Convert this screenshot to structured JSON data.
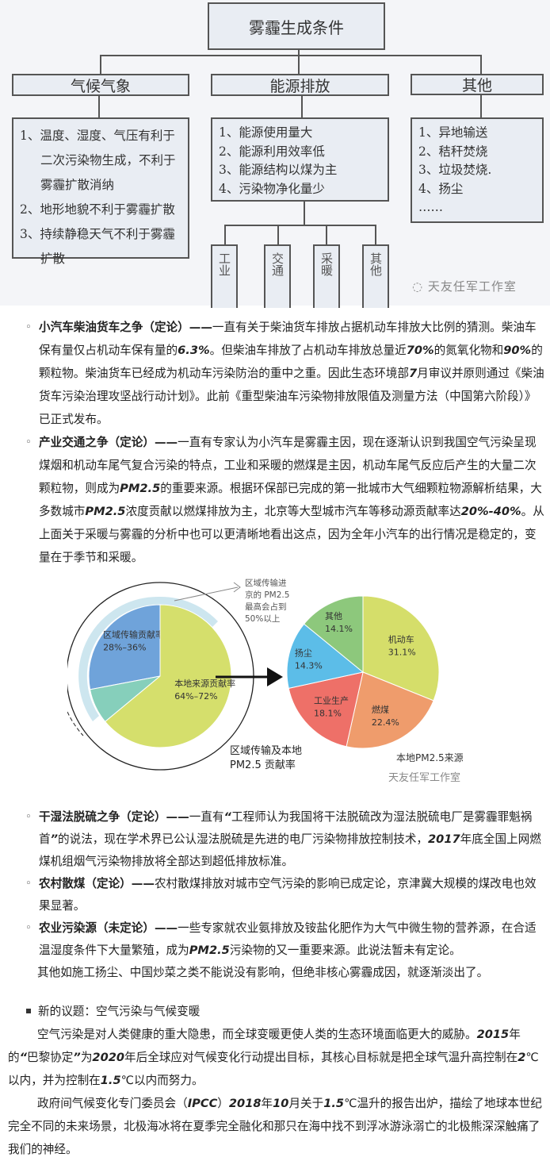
{
  "diagram": {
    "title": "雾霾生成条件",
    "categories": [
      {
        "label": "气候气象",
        "items": [
          "1、温度、湿度、气压有利于二次污染物生成，不利于雾霾扩散消纳",
          "2、地形地貌不利于雾霾扩散",
          "3、持续静稳天气不利于雾霾扩散"
        ]
      },
      {
        "label": "能源排放",
        "items": [
          "1、能源使用量大",
          "2、能源利用效率低",
          "3、能源结构以煤为主",
          "4、污染物净化量少"
        ]
      },
      {
        "label": "其他",
        "items": [
          "1、异地输送",
          "2、秸秆焚烧",
          "3、垃圾焚烧.",
          "4、扬尘",
          "……"
        ]
      }
    ],
    "sub_sectors": [
      "工业",
      "交通",
      "采暖",
      "其他"
    ],
    "watermark": "天友任军工作室"
  },
  "debates1": [
    {
      "segs": [
        {
          "t": "小汽车柴油货车之争（定论）",
          "s": 1
        },
        {
          "t": "——",
          "s": 1
        },
        {
          "t": "一直有关于柴油货车排放占据机动车排放大比例的猜测。柴油车保有量仅占机动车保有量的"
        },
        {
          "t": "6.3%",
          "n": 1
        },
        {
          "t": "。但柴油车排放了占机动车排放总量近"
        },
        {
          "t": "70%",
          "n": 1
        },
        {
          "t": "的氮氧化物和"
        },
        {
          "t": "90%",
          "n": 1
        },
        {
          "t": "的颗粒物。柴油货车已经成为机动车污染防治的重中之重。因此生态环境部"
        },
        {
          "t": "7",
          "n": 1
        },
        {
          "t": "月审议并原则通过《柴油货车污染治理攻坚战行动计划》。此前《重型柴油车污染物排放限值及测量方法（中国第六阶段）》已正式发布。"
        }
      ]
    },
    {
      "segs": [
        {
          "t": "产业交通之争（定论）",
          "s": 1
        },
        {
          "t": "——",
          "s": 1
        },
        {
          "t": "一直有专家认为小汽车是雾霾主因，现在逐渐认识到我国空气污染呈现煤烟和机动车尾气复合污染的特点，工业和采暖的燃煤是主因，机动车尾气反应后产生的大量二次颗粒物，则成为"
        },
        {
          "t": "PM2.5",
          "n": 1
        },
        {
          "t": "的重要来源。根据环保部已完成的第一批城市大气细颗粒物源解析结果，大多数城市"
        },
        {
          "t": "PM2.5",
          "n": 1
        },
        {
          "t": "浓度贡献以燃煤排放为主，北京等大型城市汽车等移动源贡献率达"
        },
        {
          "t": "20%-40%",
          "n": 1
        },
        {
          "t": "。从上面关于采暖与雾霾的分析中也可以更清晰地看出这点，因为全年小汽车的出行情况是稳定的，变量在于季节和采暖。"
        }
      ]
    }
  ],
  "figure2": {
    "left_annotation": [
      "区域传输进",
      "京的 PM2.5",
      "最高会占到",
      "50%以上"
    ],
    "left_caption": [
      "区域传输及本地",
      "PM2.5 贡献率"
    ],
    "right_caption": "本地PM2.5来源",
    "watermark": "天友任军工作室"
  },
  "chart_data": [
    {
      "type": "pie",
      "title": "区域传输及本地 PM2.5 贡献率",
      "slices": [
        {
          "label": "区域传输贡献率",
          "value_text": "28%–36%",
          "value": 28,
          "color": "#6fa3da"
        },
        {
          "label": "",
          "value_text": "",
          "value": 8,
          "color": "#86cfbb"
        },
        {
          "label": "本地来源贡献率",
          "value_text": "64%–72%",
          "value": 64,
          "color": "#d5df6c"
        }
      ],
      "annotation": "区域传输进京的 PM2.5 最高会占到50%以上"
    },
    {
      "type": "pie",
      "title": "本地PM2.5来源",
      "slices": [
        {
          "label": "机动车",
          "value": 31.1,
          "value_text": "31.1%",
          "color": "#d5de6a"
        },
        {
          "label": "燃煤",
          "value": 22.4,
          "value_text": "22.4%",
          "color": "#ef9c6c"
        },
        {
          "label": "工业生产",
          "value": 18.1,
          "value_text": "18.1%",
          "color": "#ee7068"
        },
        {
          "label": "扬尘",
          "value": 14.3,
          "value_text": "14.3%",
          "color": "#5cbde8"
        },
        {
          "label": "其他",
          "value": 14.1,
          "value_text": "14.1%",
          "color": "#8dc87c"
        }
      ]
    }
  ],
  "debates2": [
    {
      "segs": [
        {
          "t": "干湿法脱硫之争（定论）",
          "s": 1
        },
        {
          "t": "——",
          "s": 1
        },
        {
          "t": "一直有"
        },
        {
          "t": "“",
          "n": 1
        },
        {
          "t": "工程师认为我国将干法脱硫改为湿法脱硫电厂是雾霾罪魁祸首"
        },
        {
          "t": "”",
          "n": 1
        },
        {
          "t": "的说法，现在学术界已公认湿法脱硫是先进的电厂污染物排放控制技术，"
        },
        {
          "t": "2017",
          "n": 1
        },
        {
          "t": "年底全国上网燃煤机组烟气污染物排放将全部达到超低排放标准。"
        }
      ]
    },
    {
      "segs": [
        {
          "t": "农村散煤（定论）",
          "s": 1
        },
        {
          "t": "——",
          "s": 1
        },
        {
          "t": "农村散煤排放对城市空气污染的影响已成定论，京津冀大规模的煤改电也效果显著。"
        }
      ]
    },
    {
      "segs": [
        {
          "t": "农业污染源（未定论）",
          "s": 1
        },
        {
          "t": "——",
          "s": 1
        },
        {
          "t": "一些专家就农业氨排放及铵盐化肥作为大气中微生物的营养源，在合适温湿度条件下大量繁殖，成为"
        },
        {
          "t": "PM2.5",
          "n": 1
        },
        {
          "t": "污染物的又一重要来源。此说法暂未有定论。"
        }
      ]
    }
  ],
  "closing_line": "其他如施工扬尘、中国炒菜之类不能说没有影响，但绝非核心雾霾成因，就逐渐淡出了。",
  "section": {
    "heading": "新的议题：空气污染与气候变暖",
    "paragraphs": [
      {
        "segs": [
          {
            "t": "空气污染是对人类健康的重大隐患，而全球变暖更使人类的生态环境面临更大的威胁。"
          },
          {
            "t": "2015",
            "n": 1
          },
          {
            "t": "年的"
          },
          {
            "t": "“",
            "n": 1
          },
          {
            "t": "巴黎协定"
          },
          {
            "t": "”",
            "n": 1
          },
          {
            "t": "为"
          },
          {
            "t": "2020",
            "n": 1
          },
          {
            "t": "年后全球应对气候变化行动提出目标，其核心目标就是把全球气温升高控制在"
          },
          {
            "t": "2",
            "n": 1
          },
          {
            "t": "℃以内，并为控制在"
          },
          {
            "t": "1.5",
            "n": 1
          },
          {
            "t": "℃以内而努力。"
          }
        ]
      },
      {
        "segs": [
          {
            "t": "政府间气候变化专门委员会（"
          },
          {
            "t": "IPCC",
            "n": 1
          },
          {
            "t": "）"
          },
          {
            "t": "2018",
            "n": 1
          },
          {
            "t": "年"
          },
          {
            "t": "10",
            "n": 1
          },
          {
            "t": "月关于"
          },
          {
            "t": "1.5",
            "n": 1
          },
          {
            "t": "℃温升的报告出炉，描绘了地球本世纪完全不同的未来场景，北极海冰将在夏季完全融化和那只在海中找不到浮冰游泳溺亡的北极熊深深触痛了我们的神经。"
          }
        ]
      }
    ]
  }
}
